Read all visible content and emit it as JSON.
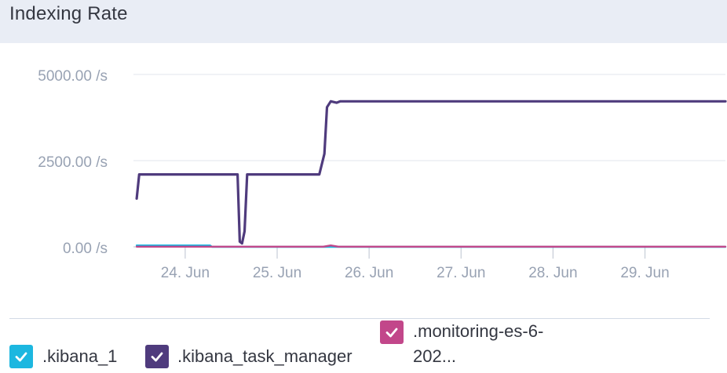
{
  "panel": {
    "title": "Indexing Rate"
  },
  "chart_data": {
    "type": "line",
    "title": "Indexing Rate",
    "xlabel": "",
    "ylabel": "",
    "y_unit": " /s",
    "ylim": [
      0,
      5000
    ],
    "y_ticks": [
      {
        "value": 0,
        "label": "0.00 /s"
      },
      {
        "value": 2500,
        "label": "2500.00 /s"
      },
      {
        "value": 5000,
        "label": "5000.00 /s"
      }
    ],
    "xlim": [
      "2018-06-23T10:30",
      "2018-06-29T21:00"
    ],
    "x_ticks": [
      {
        "value": "2018-06-24T00:00",
        "label": "24. Jun"
      },
      {
        "value": "2018-06-25T00:00",
        "label": "25. Jun"
      },
      {
        "value": "2018-06-26T00:00",
        "label": "26. Jun"
      },
      {
        "value": "2018-06-27T00:00",
        "label": "27. Jun"
      },
      {
        "value": "2018-06-28T00:00",
        "label": "28. Jun"
      },
      {
        "value": "2018-06-29T00:00",
        "label": "29. Jun"
      }
    ],
    "grid": true,
    "legend_position": "bottom",
    "series": [
      {
        "name": ".kibana_1",
        "color": "#1cb7e0",
        "x": [
          "2018-06-23T11:20",
          "2018-06-23T12:00",
          "2018-06-23T18:00",
          "2018-06-24T06:30",
          "2018-06-24T07:00",
          "2018-06-29T21:00"
        ],
        "y": [
          40,
          40,
          40,
          40,
          0,
          0
        ]
      },
      {
        "name": ".kibana_task_manager",
        "color": "#4f3b7d",
        "x": [
          "2018-06-23T11:20",
          "2018-06-23T12:00",
          "2018-06-23T18:00",
          "2018-06-24T06:00",
          "2018-06-24T13:00",
          "2018-06-24T13:40",
          "2018-06-24T14:15",
          "2018-06-24T14:50",
          "2018-06-24T15:30",
          "2018-06-24T16:10",
          "2018-06-24T20:00",
          "2018-06-25T04:00",
          "2018-06-25T10:00",
          "2018-06-25T11:00",
          "2018-06-25T12:20",
          "2018-06-25T13:00",
          "2018-06-25T14:00",
          "2018-06-25T15:30",
          "2018-06-25T16:30",
          "2018-06-26T12:00",
          "2018-06-27T12:00",
          "2018-06-28T12:00",
          "2018-06-29T21:00"
        ],
        "y": [
          1400,
          2100,
          2100,
          2100,
          2100,
          2100,
          150,
          100,
          450,
          2100,
          2100,
          2100,
          2100,
          2100,
          2700,
          4050,
          4220,
          4180,
          4220,
          4220,
          4220,
          4220,
          4220
        ]
      },
      {
        "name": ".monitoring-es-6-202...",
        "color": "#c2478a",
        "x": [
          "2018-06-23T11:20",
          "2018-06-25T12:00",
          "2018-06-25T14:00",
          "2018-06-25T16:00",
          "2018-06-29T21:00"
        ],
        "y": [
          5,
          5,
          40,
          5,
          5
        ]
      }
    ]
  },
  "legend": [
    {
      "label": ".kibana_1",
      "color": "#1cb7e0",
      "checked": true
    },
    {
      "label": ".kibana_task_manager",
      "color": "#4f3b7d",
      "checked": true
    },
    {
      "label": ".monitoring-es-6-202...",
      "color": "#c2478a",
      "checked": true
    }
  ]
}
